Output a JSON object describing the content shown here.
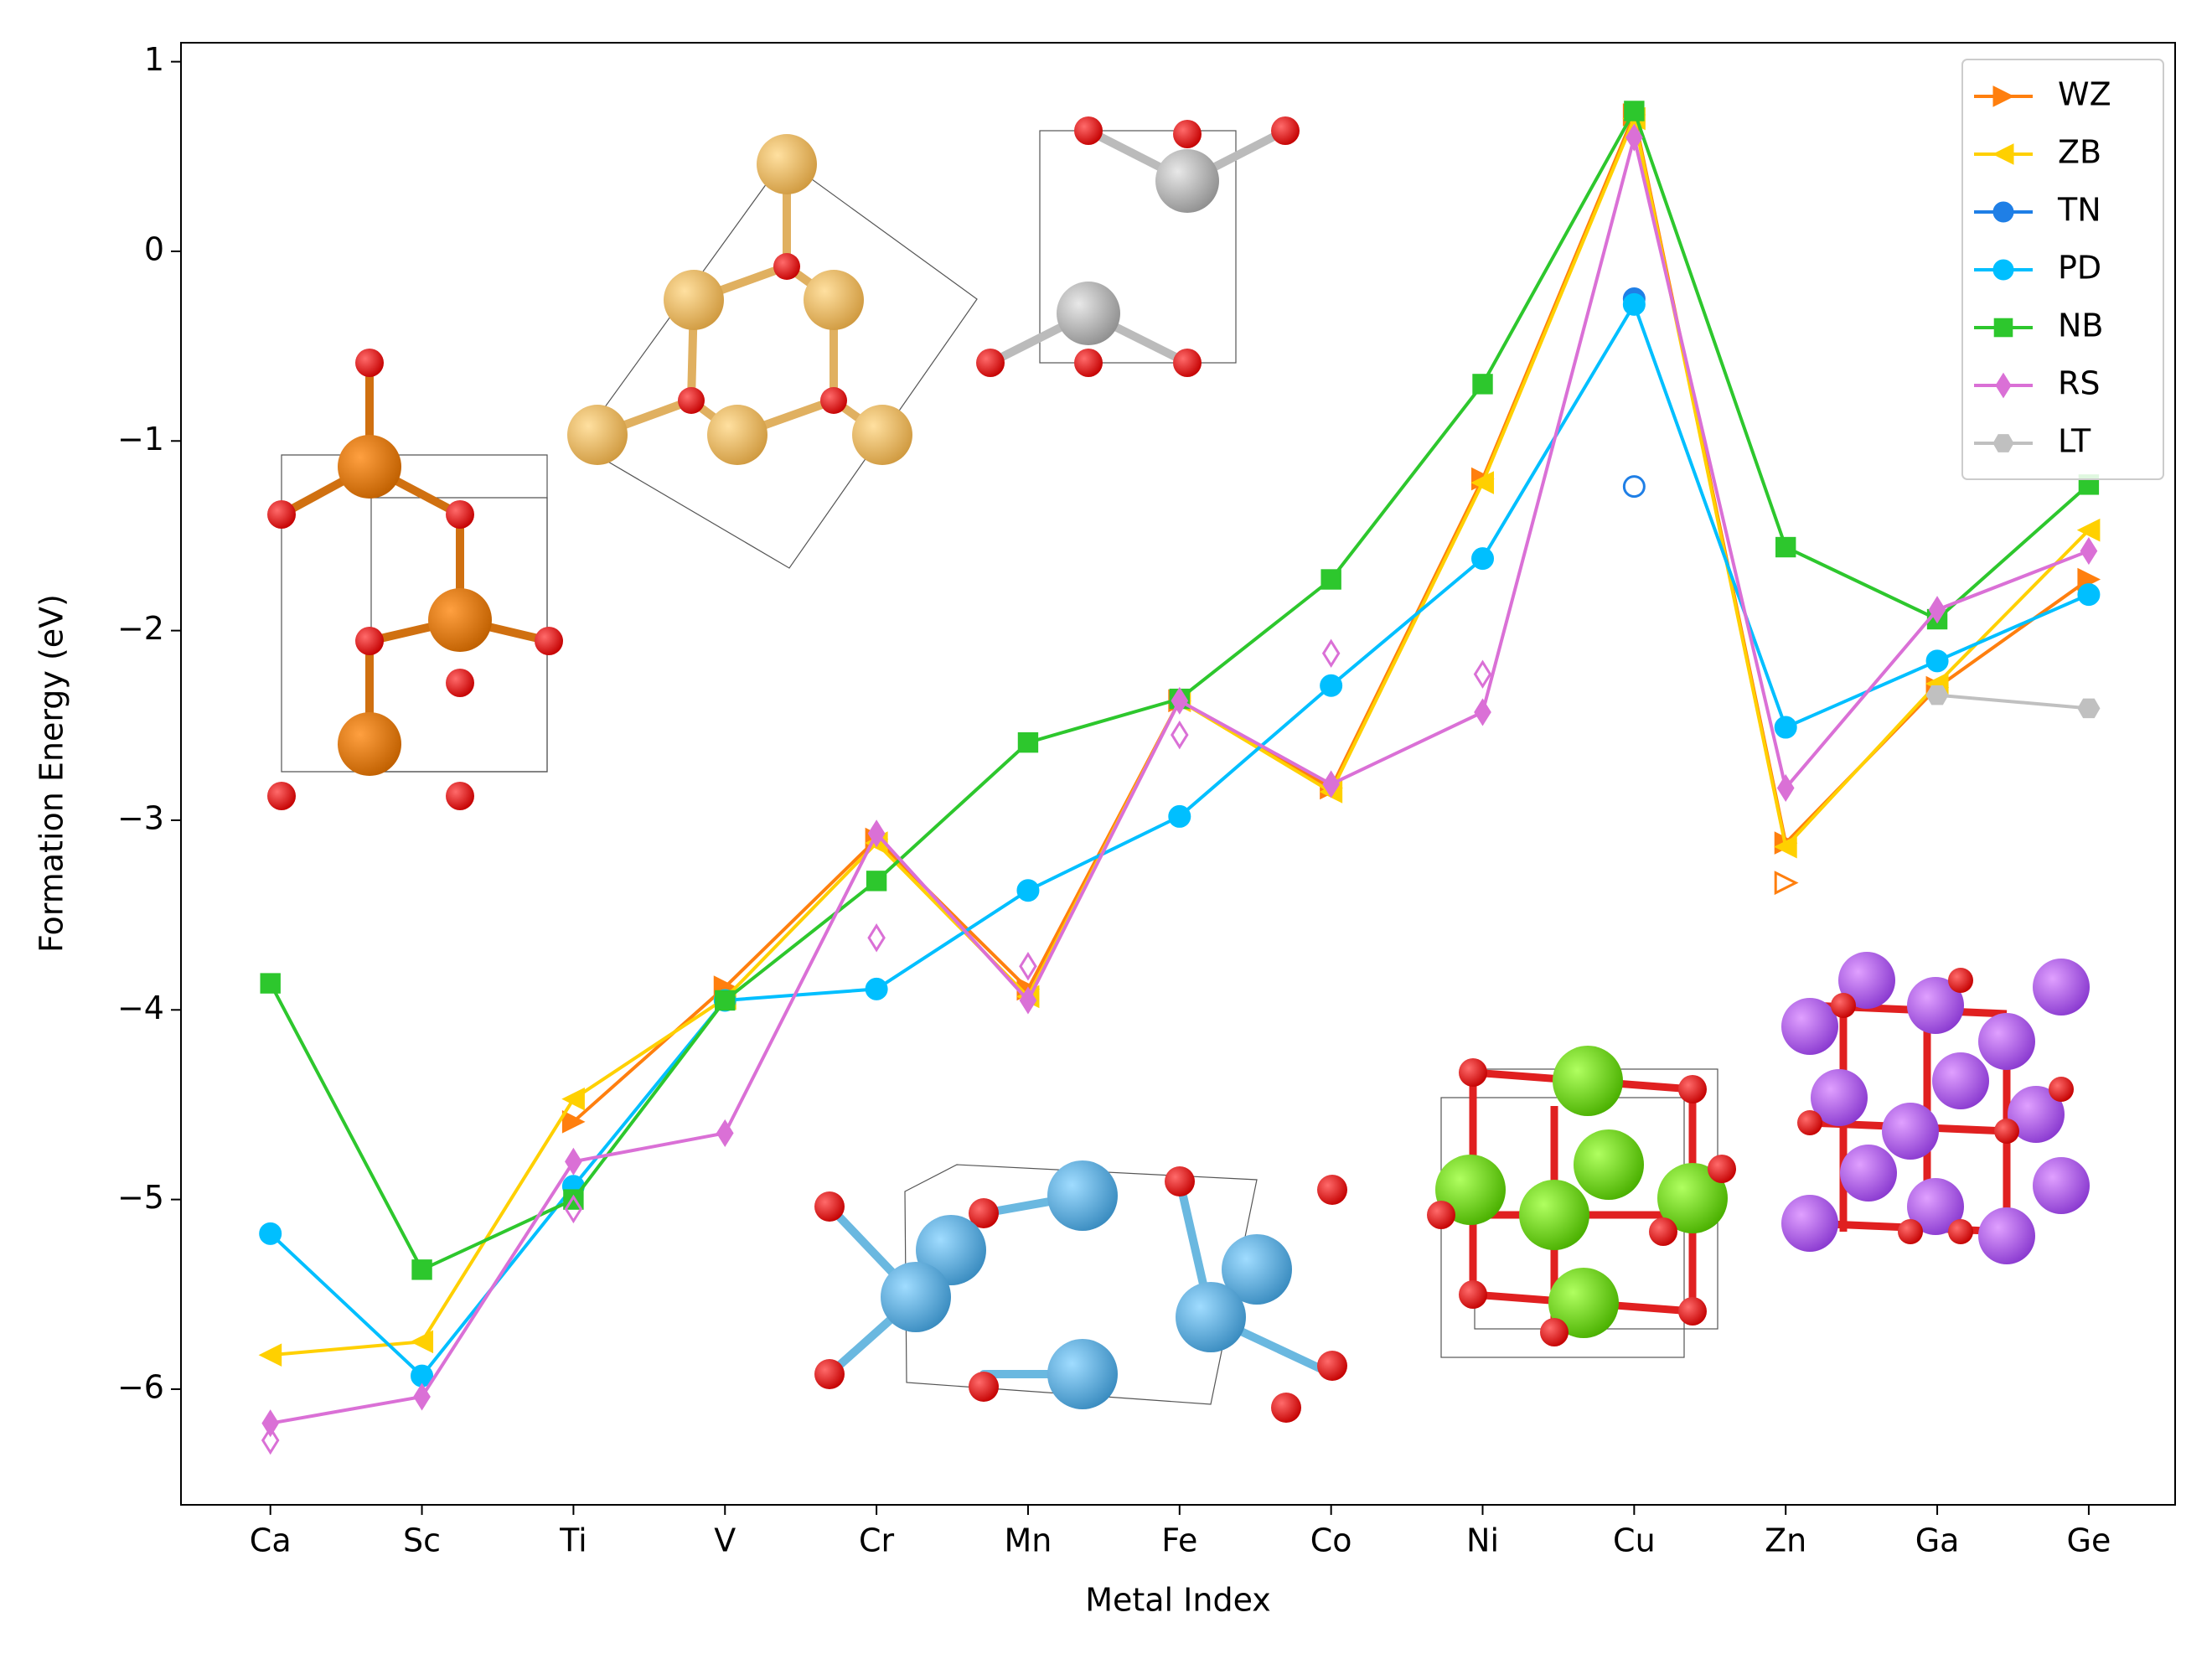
{
  "chart_data": {
    "type": "line",
    "xlabel": "Metal Index",
    "ylabel": "Formation Energy (eV)",
    "categories": [
      "Ca",
      "Sc",
      "Ti",
      "V",
      "Cr",
      "Mn",
      "Fe",
      "Co",
      "Ni",
      "Cu",
      "Zn",
      "Ga",
      "Ge"
    ],
    "xlim": [
      -0.59,
      12.57
    ],
    "ylim": [
      -6.61,
      1.1
    ],
    "yticks": [
      1,
      0,
      {
        "value": -1,
        "label": "−1"
      },
      {
        "value": -2,
        "label": "−2"
      },
      {
        "value": -3,
        "label": "−3"
      },
      {
        "value": -4,
        "label": "−4"
      },
      {
        "value": -5,
        "label": "−5"
      },
      {
        "value": -6,
        "label": "−6"
      }
    ],
    "legend": "upper right",
    "series": [
      {
        "name": "WZ",
        "color": "#ff7f0e",
        "marker": "triangle-right",
        "values": [
          null,
          null,
          -4.59,
          -3.88,
          -3.1,
          -3.89,
          -2.37,
          -2.83,
          -1.2,
          0.72,
          -3.12,
          -2.3,
          -1.73
        ],
        "open_values": [
          null,
          null,
          null,
          null,
          null,
          null,
          null,
          null,
          null,
          null,
          -3.33,
          null,
          null
        ]
      },
      {
        "name": "ZB",
        "color": "#ffd000",
        "marker": "triangle-left",
        "values": [
          -5.82,
          -5.75,
          -4.47,
          -3.94,
          -3.12,
          -3.93,
          -2.37,
          -2.85,
          -1.22,
          0.7,
          -3.14,
          -2.28,
          -1.47
        ]
      },
      {
        "name": "TN",
        "color": "#1f7fe6",
        "marker": "circle",
        "values": [
          null,
          null,
          null,
          null,
          null,
          null,
          null,
          null,
          null,
          -0.25,
          null,
          null,
          null
        ],
        "open_values": [
          null,
          null,
          null,
          null,
          null,
          null,
          null,
          null,
          null,
          -1.24,
          null,
          null,
          null
        ]
      },
      {
        "name": "PD",
        "color": "#00bfff",
        "marker": "circle",
        "values": [
          -5.18,
          -5.93,
          -4.93,
          -3.95,
          -3.89,
          -3.37,
          -2.98,
          -2.29,
          -1.62,
          -0.28,
          -2.51,
          -2.16,
          -1.81
        ]
      },
      {
        "name": "NB",
        "color": "#2dc72d",
        "marker": "square",
        "values": [
          -3.86,
          -5.37,
          -5.0,
          -3.95,
          -3.32,
          -2.59,
          -2.36,
          -1.73,
          -0.7,
          0.74,
          -1.56,
          -1.94,
          -1.23
        ]
      },
      {
        "name": "RS",
        "color": "#da70d6",
        "marker": "diamond",
        "values": [
          -6.18,
          -6.04,
          -4.8,
          -4.65,
          -3.07,
          -3.95,
          -2.37,
          -2.81,
          -2.43,
          0.6,
          -2.83,
          -1.89,
          -1.58
        ],
        "open_values": [
          -6.27,
          null,
          -5.05,
          null,
          -3.62,
          -3.77,
          -2.55,
          -2.12,
          -2.23,
          null,
          null,
          null,
          null
        ]
      },
      {
        "name": "LT",
        "color": "#c0c0c0",
        "marker": "hexagon",
        "values": [
          null,
          null,
          null,
          null,
          null,
          null,
          null,
          null,
          null,
          null,
          null,
          -2.34,
          -2.41
        ]
      }
    ]
  }
}
